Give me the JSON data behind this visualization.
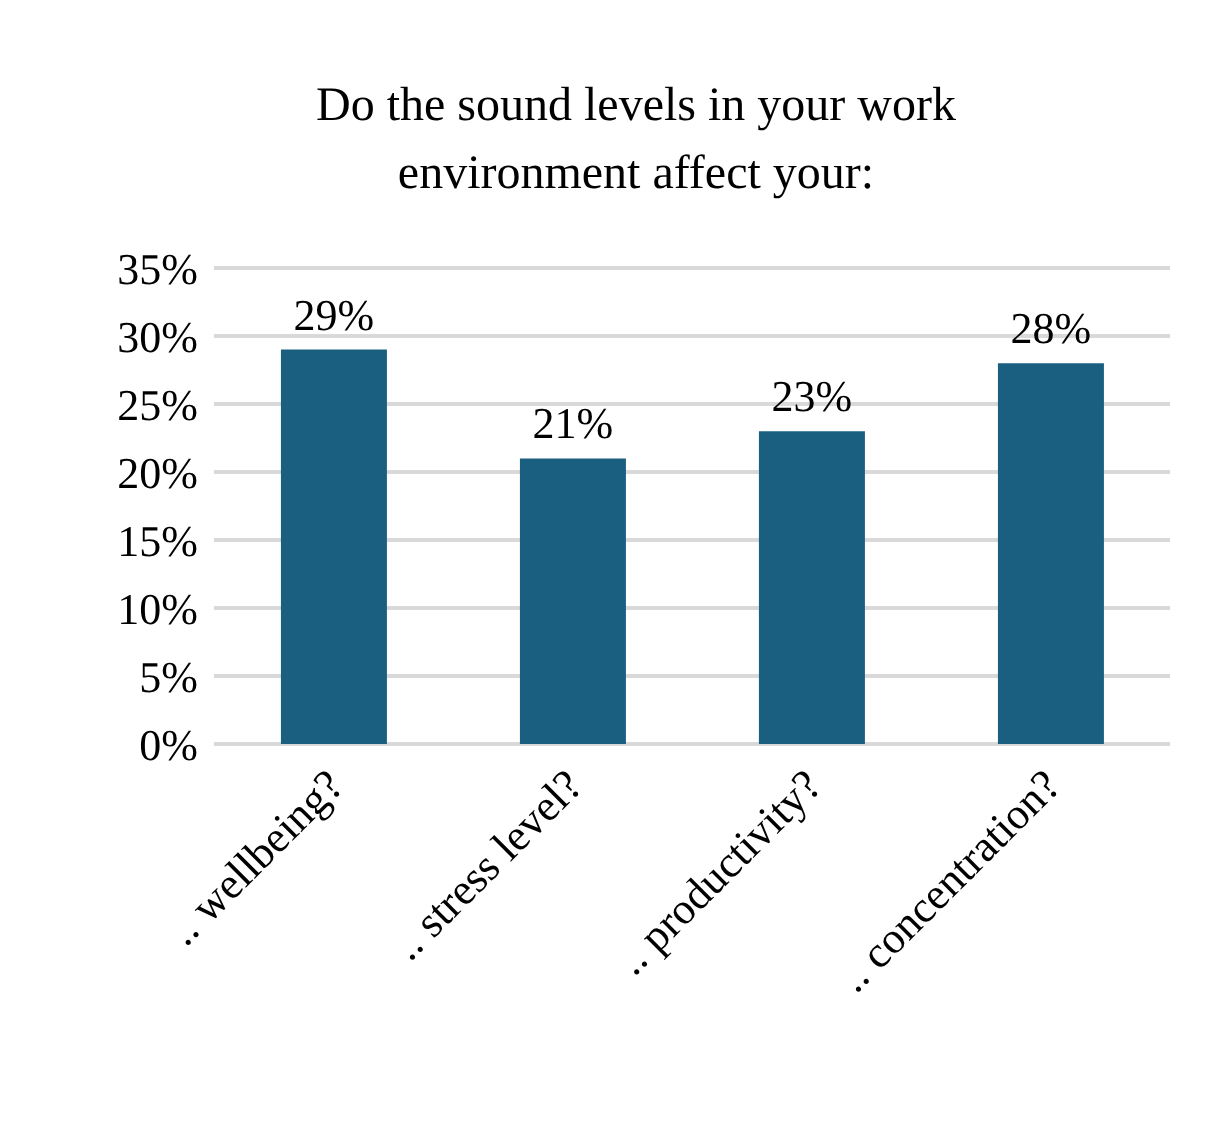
{
  "chart_data": {
    "type": "bar",
    "title": "Do the sound levels in your work environment affect your:",
    "categories": [
      ".. wellbeing?",
      ".. stress level?",
      ".. productivity?",
      ".. concentration?"
    ],
    "values": [
      29,
      21,
      23,
      28
    ],
    "value_labels": [
      "29%",
      "21%",
      "23%",
      "28%"
    ],
    "color": "#1a5e80",
    "ylim": [
      0,
      35
    ],
    "yticks": [
      {
        "value": 0,
        "label": "0%"
      },
      {
        "value": 5,
        "label": "5%"
      },
      {
        "value": 10,
        "label": "10%"
      },
      {
        "value": 15,
        "label": "15%"
      },
      {
        "value": 20,
        "label": "20%"
      },
      {
        "value": 25,
        "label": "25%"
      },
      {
        "value": 30,
        "label": "30%"
      },
      {
        "value": 35,
        "label": "35%"
      }
    ],
    "grid": "y"
  }
}
